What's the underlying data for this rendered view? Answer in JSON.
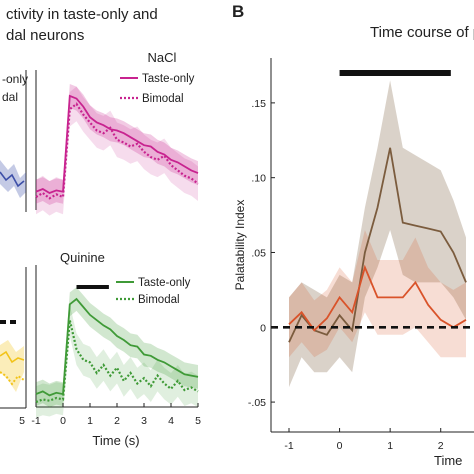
{
  "panel_a": {
    "title_line1": "ctivity in taste-only and",
    "title_line2": "dal neurons",
    "left_partial": {
      "top_legend": [
        "-only",
        "dal"
      ],
      "x_ticks": [
        "5"
      ],
      "colors": {
        "top": "#3d4fa8",
        "bottom": "#f2c318"
      }
    },
    "xlabel": "Time (s)",
    "subplots": [
      {
        "title": "NaCl",
        "legend": [
          "Taste-only",
          "Bimodal"
        ],
        "color": "#c8238f",
        "x_ticks": [
          "-1",
          "0",
          "1",
          "2",
          "3",
          "4",
          "5"
        ]
      },
      {
        "title": "Quinine",
        "legend": [
          "Taste-only",
          "Bimodal"
        ],
        "color": "#3f9a37",
        "x_ticks": [
          "-1",
          "0",
          "1",
          "2",
          "3",
          "4",
          "5"
        ]
      }
    ]
  },
  "panel_b": {
    "label": "B",
    "title": "Time course of pa",
    "ylabel": "Palatability Index",
    "xlabel_partial": "Time",
    "y_ticks": [
      ".15",
      ".10",
      ".05",
      "0",
      "-.05"
    ],
    "x_ticks": [
      "-1",
      "0",
      "1",
      "2"
    ],
    "colors": {
      "brown": "#7b5c3e",
      "orange": "#d9532a"
    }
  },
  "chart_data": [
    {
      "type": "line",
      "title": "NaCl",
      "xlabel": "Time (s)",
      "xlim": [
        -1,
        5
      ],
      "x": [
        -1,
        -0.75,
        -0.5,
        -0.25,
        0,
        0.25,
        0.5,
        0.75,
        1,
        1.25,
        1.5,
        1.75,
        2,
        2.25,
        2.5,
        2.75,
        3,
        3.25,
        3.5,
        3.75,
        4,
        4.25,
        4.5,
        4.75,
        5
      ],
      "series": [
        {
          "name": "Taste-only",
          "values": [
            0.1,
            0.12,
            0.09,
            0.11,
            0.1,
            0.82,
            0.8,
            0.74,
            0.66,
            0.62,
            0.6,
            0.57,
            0.56,
            0.54,
            0.51,
            0.48,
            0.45,
            0.44,
            0.4,
            0.38,
            0.34,
            0.32,
            0.29,
            0.26,
            0.24
          ],
          "band": 0.09
        },
        {
          "name": "Bimodal",
          "values": [
            0.06,
            0.09,
            0.05,
            0.08,
            0.06,
            0.72,
            0.76,
            0.68,
            0.62,
            0.56,
            0.54,
            0.58,
            0.49,
            0.47,
            0.44,
            0.46,
            0.4,
            0.36,
            0.34,
            0.37,
            0.3,
            0.26,
            0.22,
            0.2,
            0.16
          ],
          "band": 0.13
        }
      ]
    },
    {
      "type": "line",
      "title": "Quinine",
      "xlabel": "Time (s)",
      "xlim": [
        -1,
        5
      ],
      "x": [
        -1,
        -0.75,
        -0.5,
        -0.25,
        0,
        0.25,
        0.5,
        0.75,
        1,
        1.25,
        1.5,
        1.75,
        2,
        2.25,
        2.5,
        2.75,
        3,
        3.25,
        3.5,
        3.75,
        4,
        4.25,
        4.5,
        4.75,
        5
      ],
      "series": [
        {
          "name": "Taste-only",
          "values": [
            0.06,
            0.08,
            0.05,
            0.07,
            0.06,
            0.74,
            0.78,
            0.72,
            0.66,
            0.62,
            0.58,
            0.55,
            0.5,
            0.47,
            0.43,
            0.42,
            0.36,
            0.35,
            0.32,
            0.3,
            0.27,
            0.24,
            0.21,
            0.2,
            0.19
          ],
          "band": 0.09
        },
        {
          "name": "Bimodal",
          "values": [
            0.0,
            0.02,
            0.01,
            0.03,
            0.02,
            0.62,
            0.4,
            0.32,
            0.3,
            0.22,
            0.28,
            0.2,
            0.26,
            0.16,
            0.22,
            0.14,
            0.18,
            0.12,
            0.2,
            0.14,
            0.1,
            0.16,
            0.09,
            0.11,
            0.08
          ],
          "band": 0.12
        }
      ],
      "significance_bar": [
        0.5,
        1.7
      ]
    },
    {
      "type": "line",
      "title": "Time course of pa",
      "ylabel": "Palatability Index",
      "xlabel": "Time",
      "xlim": [
        -1,
        2.7
      ],
      "ylim": [
        -0.07,
        0.18
      ],
      "x": [
        -1,
        -0.75,
        -0.5,
        -0.25,
        0,
        0.25,
        0.5,
        0.75,
        1,
        1.25,
        1.5,
        1.75,
        2,
        2.25,
        2.5
      ],
      "series": [
        {
          "values": [
            -0.01,
            0.008,
            -0.002,
            -0.005,
            0.008,
            -0.002,
            0.05,
            0.08,
            0.12,
            0.07,
            0.068,
            0.066,
            0.064,
            0.05,
            0.03
          ],
          "band_lower": [
            -0.04,
            -0.02,
            -0.03,
            -0.03,
            -0.02,
            -0.03,
            0.02,
            0.04,
            0.065,
            0.035,
            0.03,
            0.03,
            0.03,
            0.02,
            0.005
          ],
          "band_upper": [
            0.02,
            0.03,
            0.025,
            0.02,
            0.035,
            0.03,
            0.08,
            0.12,
            0.165,
            0.12,
            0.115,
            0.11,
            0.105,
            0.085,
            0.06
          ]
        },
        {
          "values": [
            0.002,
            0.01,
            -0.002,
            0.006,
            0.02,
            0.01,
            0.04,
            0.02,
            0.02,
            0.02,
            0.03,
            0.015,
            0.005,
            0.0,
            0.005
          ],
          "band_lower": [
            -0.02,
            -0.01,
            -0.02,
            -0.015,
            0.0,
            -0.01,
            0.01,
            -0.005,
            -0.005,
            -0.005,
            0.0,
            -0.01,
            -0.02,
            -0.02,
            -0.02
          ],
          "band_upper": [
            0.02,
            0.03,
            0.018,
            0.025,
            0.04,
            0.03,
            0.065,
            0.045,
            0.045,
            0.045,
            0.06,
            0.04,
            0.03,
            0.025,
            0.03
          ]
        }
      ],
      "reference_line_y": 0,
      "significance_bar": [
        0,
        2.2
      ]
    }
  ]
}
